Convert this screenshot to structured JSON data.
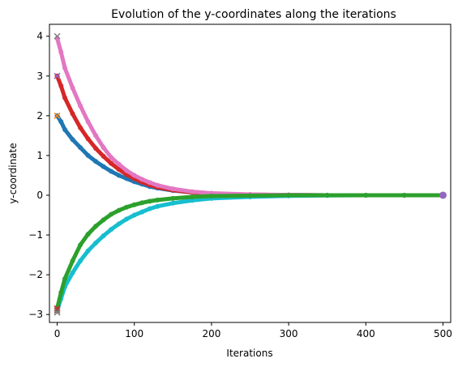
{
  "chart_data": {
    "type": "scatter",
    "title": "Evolution of the y-coordinates along the iterations",
    "xlabel": "Iterations",
    "ylabel": "y-coordinate",
    "xlim": [
      -10,
      510
    ],
    "ylim": [
      -3.2,
      4.3
    ],
    "x_ticks": [
      0,
      100,
      200,
      300,
      400,
      500
    ],
    "y_ticks": [
      -3,
      -2,
      -1,
      0,
      1,
      2,
      3,
      4
    ],
    "x_tick_labels": [
      "0",
      "100",
      "200",
      "300",
      "400",
      "500"
    ],
    "y_tick_labels": [
      "−3",
      "−2",
      "−1",
      "0",
      "1",
      "2",
      "3",
      "4"
    ],
    "grid": false,
    "series": [
      {
        "color": "#1f77b4",
        "x": [
          0,
          5,
          10,
          20,
          30,
          40,
          50,
          60,
          70,
          80,
          90,
          100,
          110,
          120,
          130,
          150,
          175,
          200,
          250,
          300,
          350,
          400,
          450,
          500
        ],
        "y": [
          2.0,
          1.85,
          1.65,
          1.4,
          1.2,
          1.0,
          0.85,
          0.72,
          0.6,
          0.5,
          0.42,
          0.34,
          0.28,
          0.22,
          0.18,
          0.12,
          0.07,
          0.04,
          0.015,
          0.005,
          0.0,
          0.0,
          0.0,
          0.0
        ]
      },
      {
        "color": "#d62728",
        "x": [
          0,
          5,
          10,
          20,
          30,
          40,
          50,
          60,
          70,
          80,
          90,
          100,
          110,
          120,
          130,
          150,
          175,
          200,
          250,
          300,
          350,
          400,
          450,
          500
        ],
        "y": [
          3.0,
          2.75,
          2.45,
          2.05,
          1.7,
          1.42,
          1.18,
          0.98,
          0.8,
          0.65,
          0.52,
          0.42,
          0.33,
          0.26,
          0.2,
          0.13,
          0.07,
          0.04,
          0.015,
          0.005,
          0.0,
          0.0,
          0.0,
          0.0
        ]
      },
      {
        "color": "#e377c2",
        "x": [
          0,
          5,
          10,
          20,
          30,
          40,
          50,
          60,
          70,
          80,
          90,
          100,
          110,
          120,
          130,
          150,
          175,
          200,
          250,
          300,
          350,
          400,
          450,
          500
        ],
        "y": [
          3.95,
          3.6,
          3.2,
          2.7,
          2.25,
          1.85,
          1.5,
          1.2,
          0.95,
          0.78,
          0.62,
          0.5,
          0.4,
          0.32,
          0.25,
          0.16,
          0.09,
          0.05,
          0.02,
          0.008,
          0.0,
          0.0,
          0.0,
          0.0
        ]
      },
      {
        "color": "#17becf",
        "x": [
          0,
          5,
          10,
          20,
          30,
          40,
          50,
          60,
          70,
          80,
          90,
          100,
          110,
          120,
          130,
          150,
          175,
          200,
          250,
          300,
          350,
          400,
          450,
          500
        ],
        "y": [
          -2.9,
          -2.6,
          -2.3,
          -1.95,
          -1.65,
          -1.4,
          -1.2,
          -1.02,
          -0.86,
          -0.72,
          -0.6,
          -0.5,
          -0.42,
          -0.34,
          -0.28,
          -0.2,
          -0.13,
          -0.08,
          -0.04,
          -0.015,
          -0.005,
          0.0,
          0.0,
          0.0
        ]
      },
      {
        "color": "#2ca02c",
        "x": [
          0,
          5,
          10,
          20,
          30,
          40,
          50,
          60,
          70,
          80,
          90,
          100,
          110,
          120,
          130,
          150,
          175,
          200,
          250,
          300,
          350,
          400,
          450,
          500
        ],
        "y": [
          -2.85,
          -2.45,
          -2.1,
          -1.65,
          -1.25,
          -0.98,
          -0.78,
          -0.62,
          -0.48,
          -0.38,
          -0.3,
          -0.24,
          -0.19,
          -0.15,
          -0.12,
          -0.08,
          -0.04,
          -0.02,
          -0.01,
          0.0,
          0.0,
          0.0,
          0.0,
          0.0
        ]
      }
    ],
    "start_markers": [
      {
        "x": 0,
        "y": 4.0,
        "color": "#7f7f7f"
      },
      {
        "x": 0,
        "y": 3.0,
        "color": "#9467bd"
      },
      {
        "x": 0,
        "y": 2.0,
        "color": "#ff7f0e"
      },
      {
        "x": 0,
        "y": -2.85,
        "color": "#d62728"
      },
      {
        "x": 0,
        "y": -2.9,
        "color": "#8c564b"
      },
      {
        "x": 0,
        "y": -2.95,
        "color": "#7f7f7f"
      }
    ],
    "end_marker": {
      "x": 500,
      "y": 0.0,
      "color": "#9467bd"
    }
  }
}
